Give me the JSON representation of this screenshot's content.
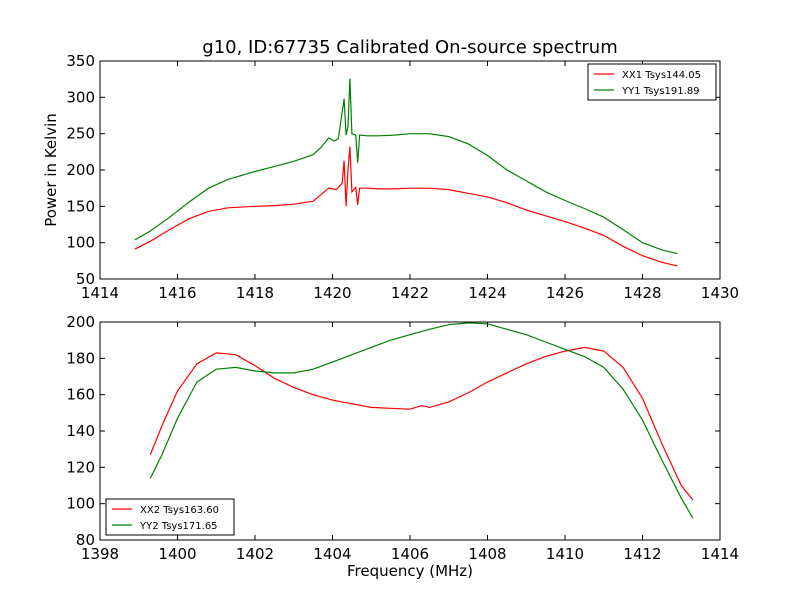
{
  "chart_data": [
    {
      "type": "line",
      "title": "g10, ID:67735 Calibrated On-source spectrum",
      "xlabel": "",
      "ylabel": "Power in Kelvin",
      "xlim": [
        1414,
        1430
      ],
      "ylim": [
        50,
        350
      ],
      "xticks": [
        1414,
        1416,
        1418,
        1420,
        1422,
        1424,
        1426,
        1428,
        1430
      ],
      "yticks": [
        50,
        100,
        150,
        200,
        250,
        300,
        350
      ],
      "legend_position": "top-right",
      "series": [
        {
          "name": "XX1 Tsys144.05",
          "color": "#ff0000",
          "points": [
            [
              1414.9,
              91
            ],
            [
              1415.3,
              102
            ],
            [
              1415.8,
              118
            ],
            [
              1416.3,
              133
            ],
            [
              1416.8,
              143
            ],
            [
              1417.3,
              148
            ],
            [
              1418,
              150
            ],
            [
              1418.5,
              151
            ],
            [
              1419,
              153
            ],
            [
              1419.5,
              157
            ],
            [
              1419.7,
              166
            ],
            [
              1419.9,
              175
            ],
            [
              1420.1,
              173
            ],
            [
              1420.25,
              182
            ],
            [
              1420.3,
              213
            ],
            [
              1420.35,
              150
            ],
            [
              1420.4,
              200
            ],
            [
              1420.45,
              232
            ],
            [
              1420.5,
              170
            ],
            [
              1420.6,
              176
            ],
            [
              1420.65,
              152
            ],
            [
              1420.7,
              175
            ],
            [
              1420.9,
              175
            ],
            [
              1421.2,
              174
            ],
            [
              1421.6,
              174
            ],
            [
              1422,
              175
            ],
            [
              1422.5,
              175
            ],
            [
              1423,
              173
            ],
            [
              1423.5,
              168
            ],
            [
              1424,
              163
            ],
            [
              1424.5,
              155
            ],
            [
              1425,
              145
            ],
            [
              1425.5,
              137
            ],
            [
              1426,
              129
            ],
            [
              1426.5,
              120
            ],
            [
              1427,
              110
            ],
            [
              1427.5,
              95
            ],
            [
              1428,
              82
            ],
            [
              1428.5,
              73
            ],
            [
              1428.9,
              68
            ]
          ]
        },
        {
          "name": "YY1 Tsys191.89",
          "color": "#008000",
          "points": [
            [
              1414.9,
              104
            ],
            [
              1415.3,
              116
            ],
            [
              1415.8,
              135
            ],
            [
              1416.3,
              156
            ],
            [
              1416.8,
              175
            ],
            [
              1417.3,
              187
            ],
            [
              1418,
              198
            ],
            [
              1418.5,
              205
            ],
            [
              1419,
              212
            ],
            [
              1419.5,
              221
            ],
            [
              1419.7,
              231
            ],
            [
              1419.9,
              244
            ],
            [
              1420.05,
              240
            ],
            [
              1420.15,
              243
            ],
            [
              1420.25,
              280
            ],
            [
              1420.3,
              298
            ],
            [
              1420.35,
              248
            ],
            [
              1420.4,
              260
            ],
            [
              1420.45,
              326
            ],
            [
              1420.5,
              250
            ],
            [
              1420.6,
              248
            ],
            [
              1420.65,
              210
            ],
            [
              1420.7,
              248
            ],
            [
              1420.9,
              247
            ],
            [
              1421.2,
              247
            ],
            [
              1421.6,
              248
            ],
            [
              1422,
              250
            ],
            [
              1422.5,
              250
            ],
            [
              1423,
              246
            ],
            [
              1423.5,
              236
            ],
            [
              1424,
              220
            ],
            [
              1424.5,
              200
            ],
            [
              1425,
              185
            ],
            [
              1425.5,
              170
            ],
            [
              1426,
              158
            ],
            [
              1426.5,
              147
            ],
            [
              1427,
              135
            ],
            [
              1427.5,
              118
            ],
            [
              1428,
              100
            ],
            [
              1428.5,
              90
            ],
            [
              1428.9,
              85
            ]
          ]
        }
      ]
    },
    {
      "type": "line",
      "title": "",
      "xlabel": "Frequency (MHz)",
      "ylabel": "",
      "xlim": [
        1398,
        1414
      ],
      "ylim": [
        80,
        200
      ],
      "xticks": [
        1398,
        1400,
        1402,
        1404,
        1406,
        1408,
        1410,
        1412,
        1414
      ],
      "yticks": [
        80,
        100,
        120,
        140,
        160,
        180,
        200
      ],
      "legend_position": "bottom-left",
      "series": [
        {
          "name": "XX2 Tsys163.60",
          "color": "#ff0000",
          "points": [
            [
              1399.3,
              127
            ],
            [
              1399.6,
              143
            ],
            [
              1400,
              162
            ],
            [
              1400.5,
              177
            ],
            [
              1401,
              183
            ],
            [
              1401.5,
              182
            ],
            [
              1402,
              176
            ],
            [
              1402.5,
              169
            ],
            [
              1403,
              164
            ],
            [
              1403.5,
              160
            ],
            [
              1404,
              157
            ],
            [
              1404.5,
              155
            ],
            [
              1405,
              153
            ],
            [
              1405.5,
              152.5
            ],
            [
              1406,
              152
            ],
            [
              1406.3,
              154
            ],
            [
              1406.5,
              153
            ],
            [
              1407,
              156
            ],
            [
              1407.5,
              161
            ],
            [
              1408,
              167
            ],
            [
              1408.5,
              172
            ],
            [
              1409,
              177
            ],
            [
              1409.5,
              181
            ],
            [
              1410,
              184
            ],
            [
              1410.5,
              186
            ],
            [
              1411,
              184
            ],
            [
              1411.5,
              175
            ],
            [
              1412,
              158
            ],
            [
              1412.5,
              133
            ],
            [
              1413,
              110
            ],
            [
              1413.3,
              102
            ]
          ]
        },
        {
          "name": "YY2 Tsys171.65",
          "color": "#008000",
          "points": [
            [
              1399.3,
              114
            ],
            [
              1399.6,
              127
            ],
            [
              1400,
              147
            ],
            [
              1400.5,
              167
            ],
            [
              1401,
              174
            ],
            [
              1401.5,
              175
            ],
            [
              1402,
              173
            ],
            [
              1402.5,
              172
            ],
            [
              1403,
              172
            ],
            [
              1403.5,
              174
            ],
            [
              1404,
              178
            ],
            [
              1404.5,
              182
            ],
            [
              1405,
              186
            ],
            [
              1405.5,
              190
            ],
            [
              1406,
              193
            ],
            [
              1406.5,
              196
            ],
            [
              1407,
              198.5
            ],
            [
              1407.5,
              199.5
            ],
            [
              1408,
              199
            ],
            [
              1408.5,
              196
            ],
            [
              1409,
              193
            ],
            [
              1409.5,
              189
            ],
            [
              1410,
              185
            ],
            [
              1410.5,
              181
            ],
            [
              1411,
              175
            ],
            [
              1411.5,
              163
            ],
            [
              1412,
              146
            ],
            [
              1412.5,
              124
            ],
            [
              1413,
              103
            ],
            [
              1413.3,
              92
            ]
          ]
        }
      ]
    }
  ]
}
